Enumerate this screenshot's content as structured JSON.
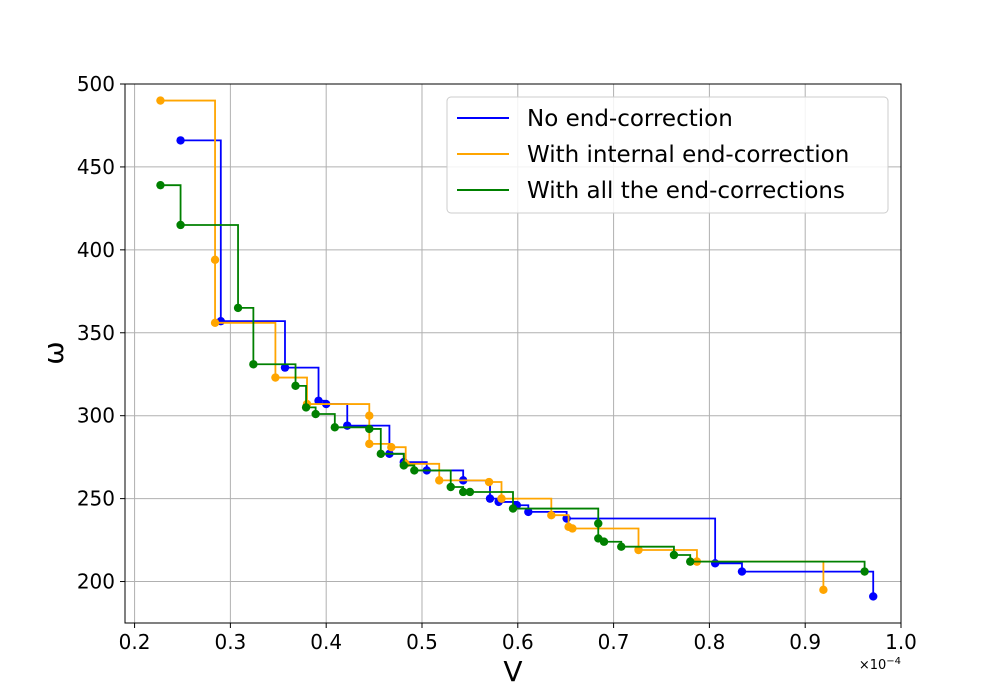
{
  "chart_data": {
    "type": "line",
    "title": "",
    "xlabel": "V",
    "ylabel": "ω",
    "x_multiplier": {
      "base": "×10",
      "exponent": "−4"
    },
    "xlim": [
      0.19,
      1.0
    ],
    "ylim": [
      175,
      500
    ],
    "xticks": [
      0.2,
      0.3,
      0.4,
      0.5,
      0.6,
      0.7,
      0.8,
      0.9,
      1.0
    ],
    "xtick_labels": [
      "0.2",
      "0.3",
      "0.4",
      "0.5",
      "0.6",
      "0.7",
      "0.8",
      "0.9",
      "1.0"
    ],
    "yticks": [
      200,
      250,
      300,
      350,
      400,
      450,
      500
    ],
    "ytick_labels": [
      "200",
      "250",
      "300",
      "350",
      "400",
      "450",
      "500"
    ],
    "grid": true,
    "legend_position": "top-right",
    "step_style": "post",
    "series": [
      {
        "name": "No end-correction",
        "color": "#0000ff",
        "x": [
          0.248,
          0.29,
          0.357,
          0.392,
          0.4,
          0.422,
          0.466,
          0.481,
          0.505,
          0.543,
          0.571,
          0.58,
          0.599,
          0.611,
          0.651,
          0.806,
          0.834,
          0.971
        ],
        "y": [
          466,
          357,
          329,
          309,
          307,
          294,
          277,
          272,
          267,
          261,
          250,
          248,
          246,
          242,
          238,
          211,
          206,
          191
        ]
      },
      {
        "name": "With internal end-correction",
        "color": "#ffa500",
        "x": [
          0.227,
          0.284,
          0.284,
          0.347,
          0.38,
          0.445,
          0.445,
          0.468,
          0.483,
          0.518,
          0.57,
          0.583,
          0.635,
          0.653,
          0.657,
          0.726,
          0.787,
          0.919
        ],
        "y": [
          490,
          394,
          356,
          323,
          307,
          300,
          283,
          281,
          271,
          261,
          260,
          250,
          240,
          233,
          232,
          219,
          212,
          195
        ]
      },
      {
        "name": "With all the end-corrections",
        "color": "#008000",
        "x": [
          0.227,
          0.248,
          0.308,
          0.324,
          0.368,
          0.379,
          0.389,
          0.409,
          0.445,
          0.457,
          0.481,
          0.492,
          0.53,
          0.543,
          0.55,
          0.595,
          0.684,
          0.684,
          0.69,
          0.708,
          0.763,
          0.78,
          0.962
        ],
        "y": [
          439,
          415,
          365,
          331,
          318,
          305,
          301,
          293,
          292,
          277,
          270,
          267,
          257,
          254,
          254,
          244,
          235,
          226,
          224,
          221,
          216,
          212,
          206
        ]
      }
    ]
  }
}
